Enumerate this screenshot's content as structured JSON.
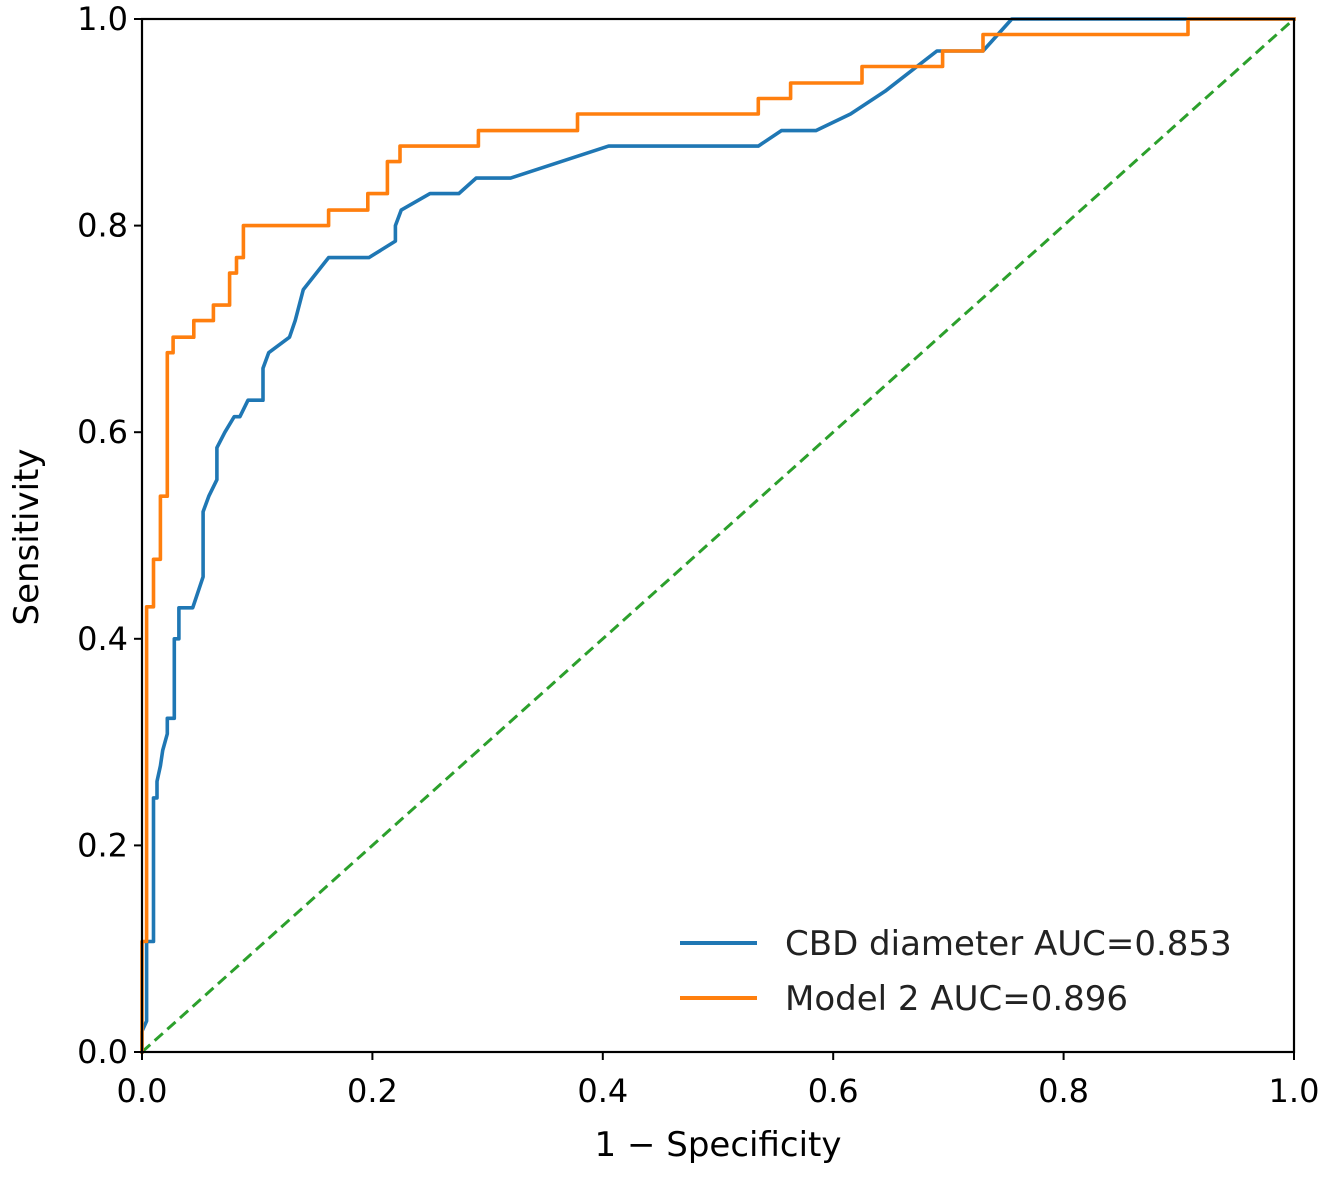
{
  "chart_data": {
    "type": "line",
    "title": "",
    "xlabel": "1 − Specificity",
    "ylabel": "Sensitivity",
    "xlim": [
      0,
      1
    ],
    "ylim": [
      0,
      1
    ],
    "x_ticks": [
      "0.0",
      "0.2",
      "0.4",
      "0.6",
      "0.8",
      "1.0"
    ],
    "y_ticks": [
      "0.0",
      "0.2",
      "0.4",
      "0.6",
      "0.8",
      "1.0"
    ],
    "grid": false,
    "legend_position": "bottom-right",
    "series": [
      {
        "name": "CBD diameter AUC=0.853",
        "color": "#1f77b4",
        "style": "solid",
        "points": [
          [
            0.0,
            0.0
          ],
          [
            0.0,
            0.02
          ],
          [
            0.004,
            0.03
          ],
          [
            0.004,
            0.107
          ],
          [
            0.01,
            0.107
          ],
          [
            0.01,
            0.246
          ],
          [
            0.013,
            0.246
          ],
          [
            0.013,
            0.262
          ],
          [
            0.016,
            0.277
          ],
          [
            0.018,
            0.292
          ],
          [
            0.022,
            0.308
          ],
          [
            0.022,
            0.323
          ],
          [
            0.028,
            0.323
          ],
          [
            0.028,
            0.4
          ],
          [
            0.032,
            0.4
          ],
          [
            0.032,
            0.43
          ],
          [
            0.044,
            0.43
          ],
          [
            0.053,
            0.46
          ],
          [
            0.053,
            0.523
          ],
          [
            0.058,
            0.538
          ],
          [
            0.065,
            0.554
          ],
          [
            0.065,
            0.585
          ],
          [
            0.072,
            0.6
          ],
          [
            0.08,
            0.615
          ],
          [
            0.085,
            0.615
          ],
          [
            0.092,
            0.631
          ],
          [
            0.105,
            0.631
          ],
          [
            0.105,
            0.662
          ],
          [
            0.11,
            0.677
          ],
          [
            0.128,
            0.692
          ],
          [
            0.133,
            0.708
          ],
          [
            0.14,
            0.738
          ],
          [
            0.162,
            0.769
          ],
          [
            0.197,
            0.769
          ],
          [
            0.22,
            0.785
          ],
          [
            0.22,
            0.8
          ],
          [
            0.225,
            0.815
          ],
          [
            0.25,
            0.831
          ],
          [
            0.275,
            0.831
          ],
          [
            0.29,
            0.846
          ],
          [
            0.32,
            0.846
          ],
          [
            0.405,
            0.877
          ],
          [
            0.535,
            0.877
          ],
          [
            0.555,
            0.892
          ],
          [
            0.585,
            0.892
          ],
          [
            0.615,
            0.908
          ],
          [
            0.645,
            0.93
          ],
          [
            0.69,
            0.969
          ],
          [
            0.73,
            0.969
          ],
          [
            0.755,
            1.0
          ],
          [
            0.91,
            1.0
          ],
          [
            1.0,
            1.0
          ]
        ]
      },
      {
        "name": "Model 2 AUC=0.896",
        "color": "#ff7f0e",
        "style": "solid",
        "points": [
          [
            0.0,
            0.0
          ],
          [
            0.0,
            0.107
          ],
          [
            0.004,
            0.107
          ],
          [
            0.004,
            0.431
          ],
          [
            0.01,
            0.431
          ],
          [
            0.01,
            0.477
          ],
          [
            0.016,
            0.477
          ],
          [
            0.016,
            0.538
          ],
          [
            0.022,
            0.538
          ],
          [
            0.022,
            0.677
          ],
          [
            0.027,
            0.677
          ],
          [
            0.027,
            0.692
          ],
          [
            0.045,
            0.692
          ],
          [
            0.045,
            0.708
          ],
          [
            0.062,
            0.708
          ],
          [
            0.062,
            0.723
          ],
          [
            0.076,
            0.723
          ],
          [
            0.076,
            0.754
          ],
          [
            0.082,
            0.754
          ],
          [
            0.082,
            0.769
          ],
          [
            0.088,
            0.769
          ],
          [
            0.088,
            0.8
          ],
          [
            0.162,
            0.8
          ],
          [
            0.162,
            0.815
          ],
          [
            0.196,
            0.815
          ],
          [
            0.196,
            0.831
          ],
          [
            0.213,
            0.831
          ],
          [
            0.213,
            0.862
          ],
          [
            0.224,
            0.862
          ],
          [
            0.224,
            0.877
          ],
          [
            0.292,
            0.877
          ],
          [
            0.292,
            0.892
          ],
          [
            0.378,
            0.892
          ],
          [
            0.378,
            0.908
          ],
          [
            0.535,
            0.908
          ],
          [
            0.535,
            0.923
          ],
          [
            0.563,
            0.923
          ],
          [
            0.563,
            0.938
          ],
          [
            0.625,
            0.938
          ],
          [
            0.625,
            0.954
          ],
          [
            0.695,
            0.954
          ],
          [
            0.695,
            0.969
          ],
          [
            0.73,
            0.969
          ],
          [
            0.73,
            0.985
          ],
          [
            0.908,
            0.985
          ],
          [
            0.908,
            1.0
          ],
          [
            1.0,
            1.0
          ]
        ]
      }
    ],
    "reference_line": {
      "color": "#2ca02c",
      "style": "dashed",
      "points": [
        [
          0,
          0
        ],
        [
          1,
          1
        ]
      ]
    }
  }
}
